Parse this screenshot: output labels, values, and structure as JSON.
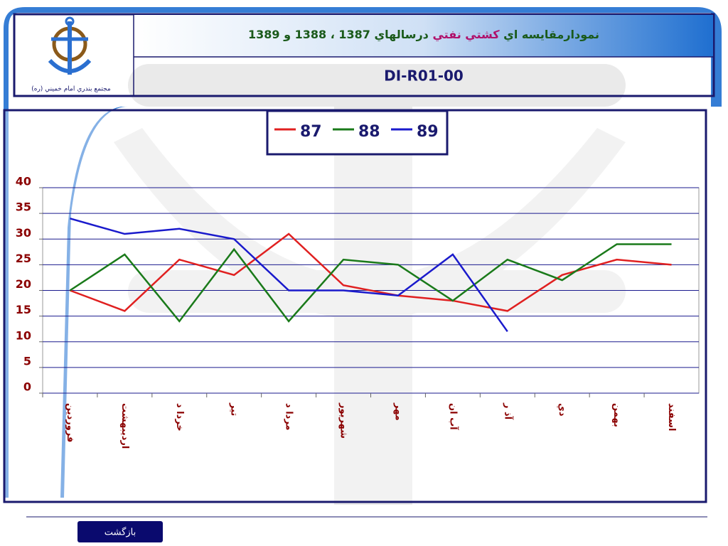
{
  "header": {
    "title_parts": [
      "نمودارمقايسه اي",
      "كشتي نفتي",
      "درسالهاي 1387 ، 1388 و 1389"
    ],
    "code": "DI-R01-00",
    "organization": "مجتمع بندري امام خميني (ره)"
  },
  "button": "بازگشت",
  "chart_data": {
    "type": "line",
    "categories": [
      "فروردين",
      "ارديبهشت",
      "خردا د",
      "تير",
      "مردا د",
      "شهريور",
      "مهر",
      "آب ان",
      "آذ ر",
      "دي",
      "بهمن",
      "اسفند"
    ],
    "series": [
      {
        "name": "87",
        "color": "#e02020",
        "values": [
          20,
          16,
          26,
          23,
          31,
          21,
          19,
          18,
          16,
          23,
          26,
          25
        ]
      },
      {
        "name": "88",
        "color": "#1a7a1a",
        "values": [
          20,
          27,
          14,
          28,
          14,
          26,
          25,
          18,
          26,
          22,
          29,
          29
        ]
      },
      {
        "name": "89",
        "color": "#1a1acc",
        "values": [
          34,
          31,
          32,
          30,
          20,
          20,
          19,
          27,
          12,
          null,
          null,
          null
        ]
      }
    ],
    "ylim": [
      0,
      40
    ],
    "yticks": [
      0,
      5,
      10,
      15,
      20,
      25,
      30,
      35,
      40
    ],
    "grid": true,
    "legend": "top"
  }
}
